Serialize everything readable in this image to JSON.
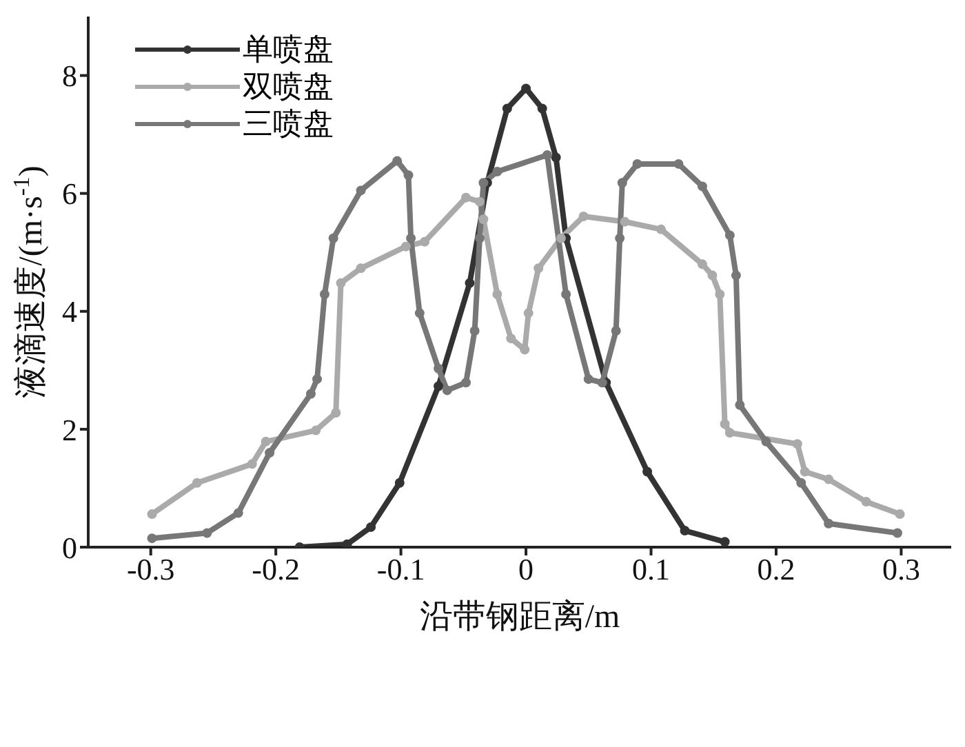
{
  "chart_data": {
    "type": "line",
    "xlabel": "沿带钢距离/m",
    "ylabel": "液滴速度/(m·s$^{-1}$)",
    "xlim": [
      -0.35,
      0.34
    ],
    "xticks": [
      -0.3,
      -0.2,
      -0.1,
      0,
      0.1,
      0.2,
      0.3
    ],
    "ylim": [
      0,
      9
    ],
    "yticks": [
      0,
      2,
      4,
      6,
      8
    ],
    "grid": false,
    "legend": "top left",
    "marker": "circle",
    "line_style": "solid",
    "series": [
      {
        "name": "单喷盘",
        "color": "#333333",
        "x": [
          -0.181,
          -0.143,
          -0.124,
          -0.101,
          -0.07,
          -0.045,
          -0.031,
          -0.015,
          0,
          0.013,
          0.024,
          0.032,
          0.064,
          0.097,
          0.127,
          0.159
        ],
        "values": [
          0,
          0.05,
          0.34,
          1.09,
          2.73,
          4.48,
          6.18,
          7.44,
          7.78,
          7.44,
          6.61,
          5.24,
          2.79,
          1.28,
          0.28,
          0.09
        ]
      },
      {
        "name": "双喷盘",
        "color": "#aaaaaa",
        "x": [
          -0.299,
          -0.263,
          -0.219,
          -0.208,
          -0.168,
          -0.152,
          -0.148,
          -0.132,
          -0.096,
          -0.081,
          -0.048,
          -0.037,
          -0.034,
          -0.023,
          -0.012,
          -0.001,
          0.002,
          0.01,
          0.028,
          0.046,
          0.079,
          0.108,
          0.141,
          0.149,
          0.155,
          0.159,
          0.163,
          0.217,
          0.223,
          0.242,
          0.272,
          0.299
        ],
        "values": [
          0.56,
          1.09,
          1.41,
          1.79,
          1.98,
          2.28,
          4.48,
          4.73,
          5.1,
          5.18,
          5.93,
          5.86,
          5.56,
          4.29,
          3.54,
          3.35,
          3.97,
          4.73,
          5.24,
          5.61,
          5.52,
          5.39,
          4.8,
          4.61,
          4.29,
          2.09,
          1.94,
          1.75,
          1.28,
          1.15,
          0.77,
          0.56
        ]
      },
      {
        "name": "三喷盘",
        "color": "#777777",
        "x": [
          -0.299,
          -0.255,
          -0.23,
          -0.205,
          -0.172,
          -0.167,
          -0.161,
          -0.154,
          -0.132,
          -0.103,
          -0.094,
          -0.092,
          -0.085,
          -0.07,
          -0.063,
          -0.048,
          -0.041,
          -0.037,
          -0.034,
          -0.023,
          0.017,
          0.032,
          0.05,
          0.061,
          0.072,
          0.075,
          0.077,
          0.089,
          0.122,
          0.141,
          0.163,
          0.168,
          0.171,
          0.192,
          0.22,
          0.242,
          0.297
        ],
        "values": [
          0.15,
          0.24,
          0.58,
          1.6,
          2.6,
          2.85,
          4.29,
          5.24,
          6.05,
          6.55,
          6.31,
          5.24,
          3.97,
          3.03,
          2.66,
          2.79,
          3.67,
          5.24,
          6.18,
          6.37,
          6.65,
          4.29,
          2.85,
          2.79,
          3.67,
          5.24,
          6.18,
          6.5,
          6.5,
          6.12,
          5.29,
          4.61,
          2.41,
          1.79,
          1.09,
          0.4,
          0.24
        ]
      }
    ]
  }
}
